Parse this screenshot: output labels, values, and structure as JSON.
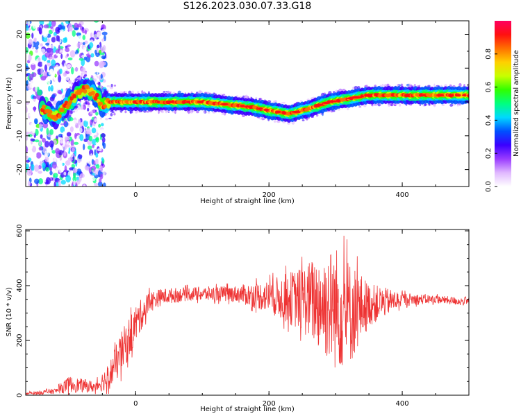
{
  "figure_title": "S126.2023.030.07.33.G18",
  "chart_data": [
    {
      "type": "heatmap",
      "panel": "top",
      "xlabel": "Height of straight line (km)",
      "ylabel": "Frequency (Hz)",
      "xlim": [
        -165,
        500
      ],
      "ylim": [
        -25,
        24
      ],
      "xticks": [
        0,
        200,
        400
      ],
      "yticks": [
        -20,
        -10,
        0,
        10,
        20
      ],
      "colorbar": {
        "label": "Normalized spectral amplitude",
        "range": [
          0,
          1
        ],
        "ticks": [
          0.0,
          0.2,
          0.4,
          0.6,
          0.8
        ],
        "colors": [
          "#ffffff",
          "#e0b8ff",
          "#9a3cff",
          "#3a00ff",
          "#0050ff",
          "#00d8ff",
          "#00ff80",
          "#30ff00",
          "#c8ff00",
          "#ffd000",
          "#ff7000",
          "#ff1010",
          "#ff0060"
        ]
      },
      "ridge": {
        "x": [
          -165,
          -140,
          -120,
          -105,
          -90,
          -75,
          -60,
          -50,
          -40,
          -30,
          0,
          50,
          100,
          150,
          175,
          200,
          230,
          260,
          290,
          320,
          350,
          400,
          450,
          500
        ],
        "frequency": [
          0,
          -2,
          -5,
          -1,
          2,
          4,
          2,
          -1,
          0,
          0,
          0,
          0,
          0,
          -1,
          -1.5,
          -2.5,
          -3.5,
          -2,
          0,
          1,
          2,
          2,
          2,
          2
        ]
      }
    },
    {
      "type": "line",
      "panel": "bottom",
      "xlabel": "Height of straight line (km)",
      "ylabel": "SNR (10 * v/v)",
      "xlim": [
        -165,
        500
      ],
      "ylim": [
        0,
        605
      ],
      "xticks": [
        0,
        200,
        400
      ],
      "yticks": [
        0,
        200,
        400,
        600
      ],
      "series": [
        {
          "color": "#ee3333",
          "envelope_x": [
            -165,
            -120,
            -100,
            -80,
            -60,
            -40,
            -20,
            0,
            20,
            40,
            80,
            150,
            200,
            250,
            275,
            300,
            320,
            350,
            400,
            450,
            500
          ],
          "envelope_mean": [
            5,
            15,
            40,
            35,
            30,
            70,
            160,
            260,
            340,
            360,
            370,
            370,
            360,
            350,
            340,
            320,
            300,
            330,
            350,
            350,
            340
          ],
          "envelope_spread": [
            5,
            10,
            30,
            25,
            20,
            50,
            80,
            70,
            40,
            30,
            25,
            30,
            60,
            120,
            180,
            230,
            200,
            80,
            25,
            15,
            15
          ]
        }
      ]
    }
  ]
}
